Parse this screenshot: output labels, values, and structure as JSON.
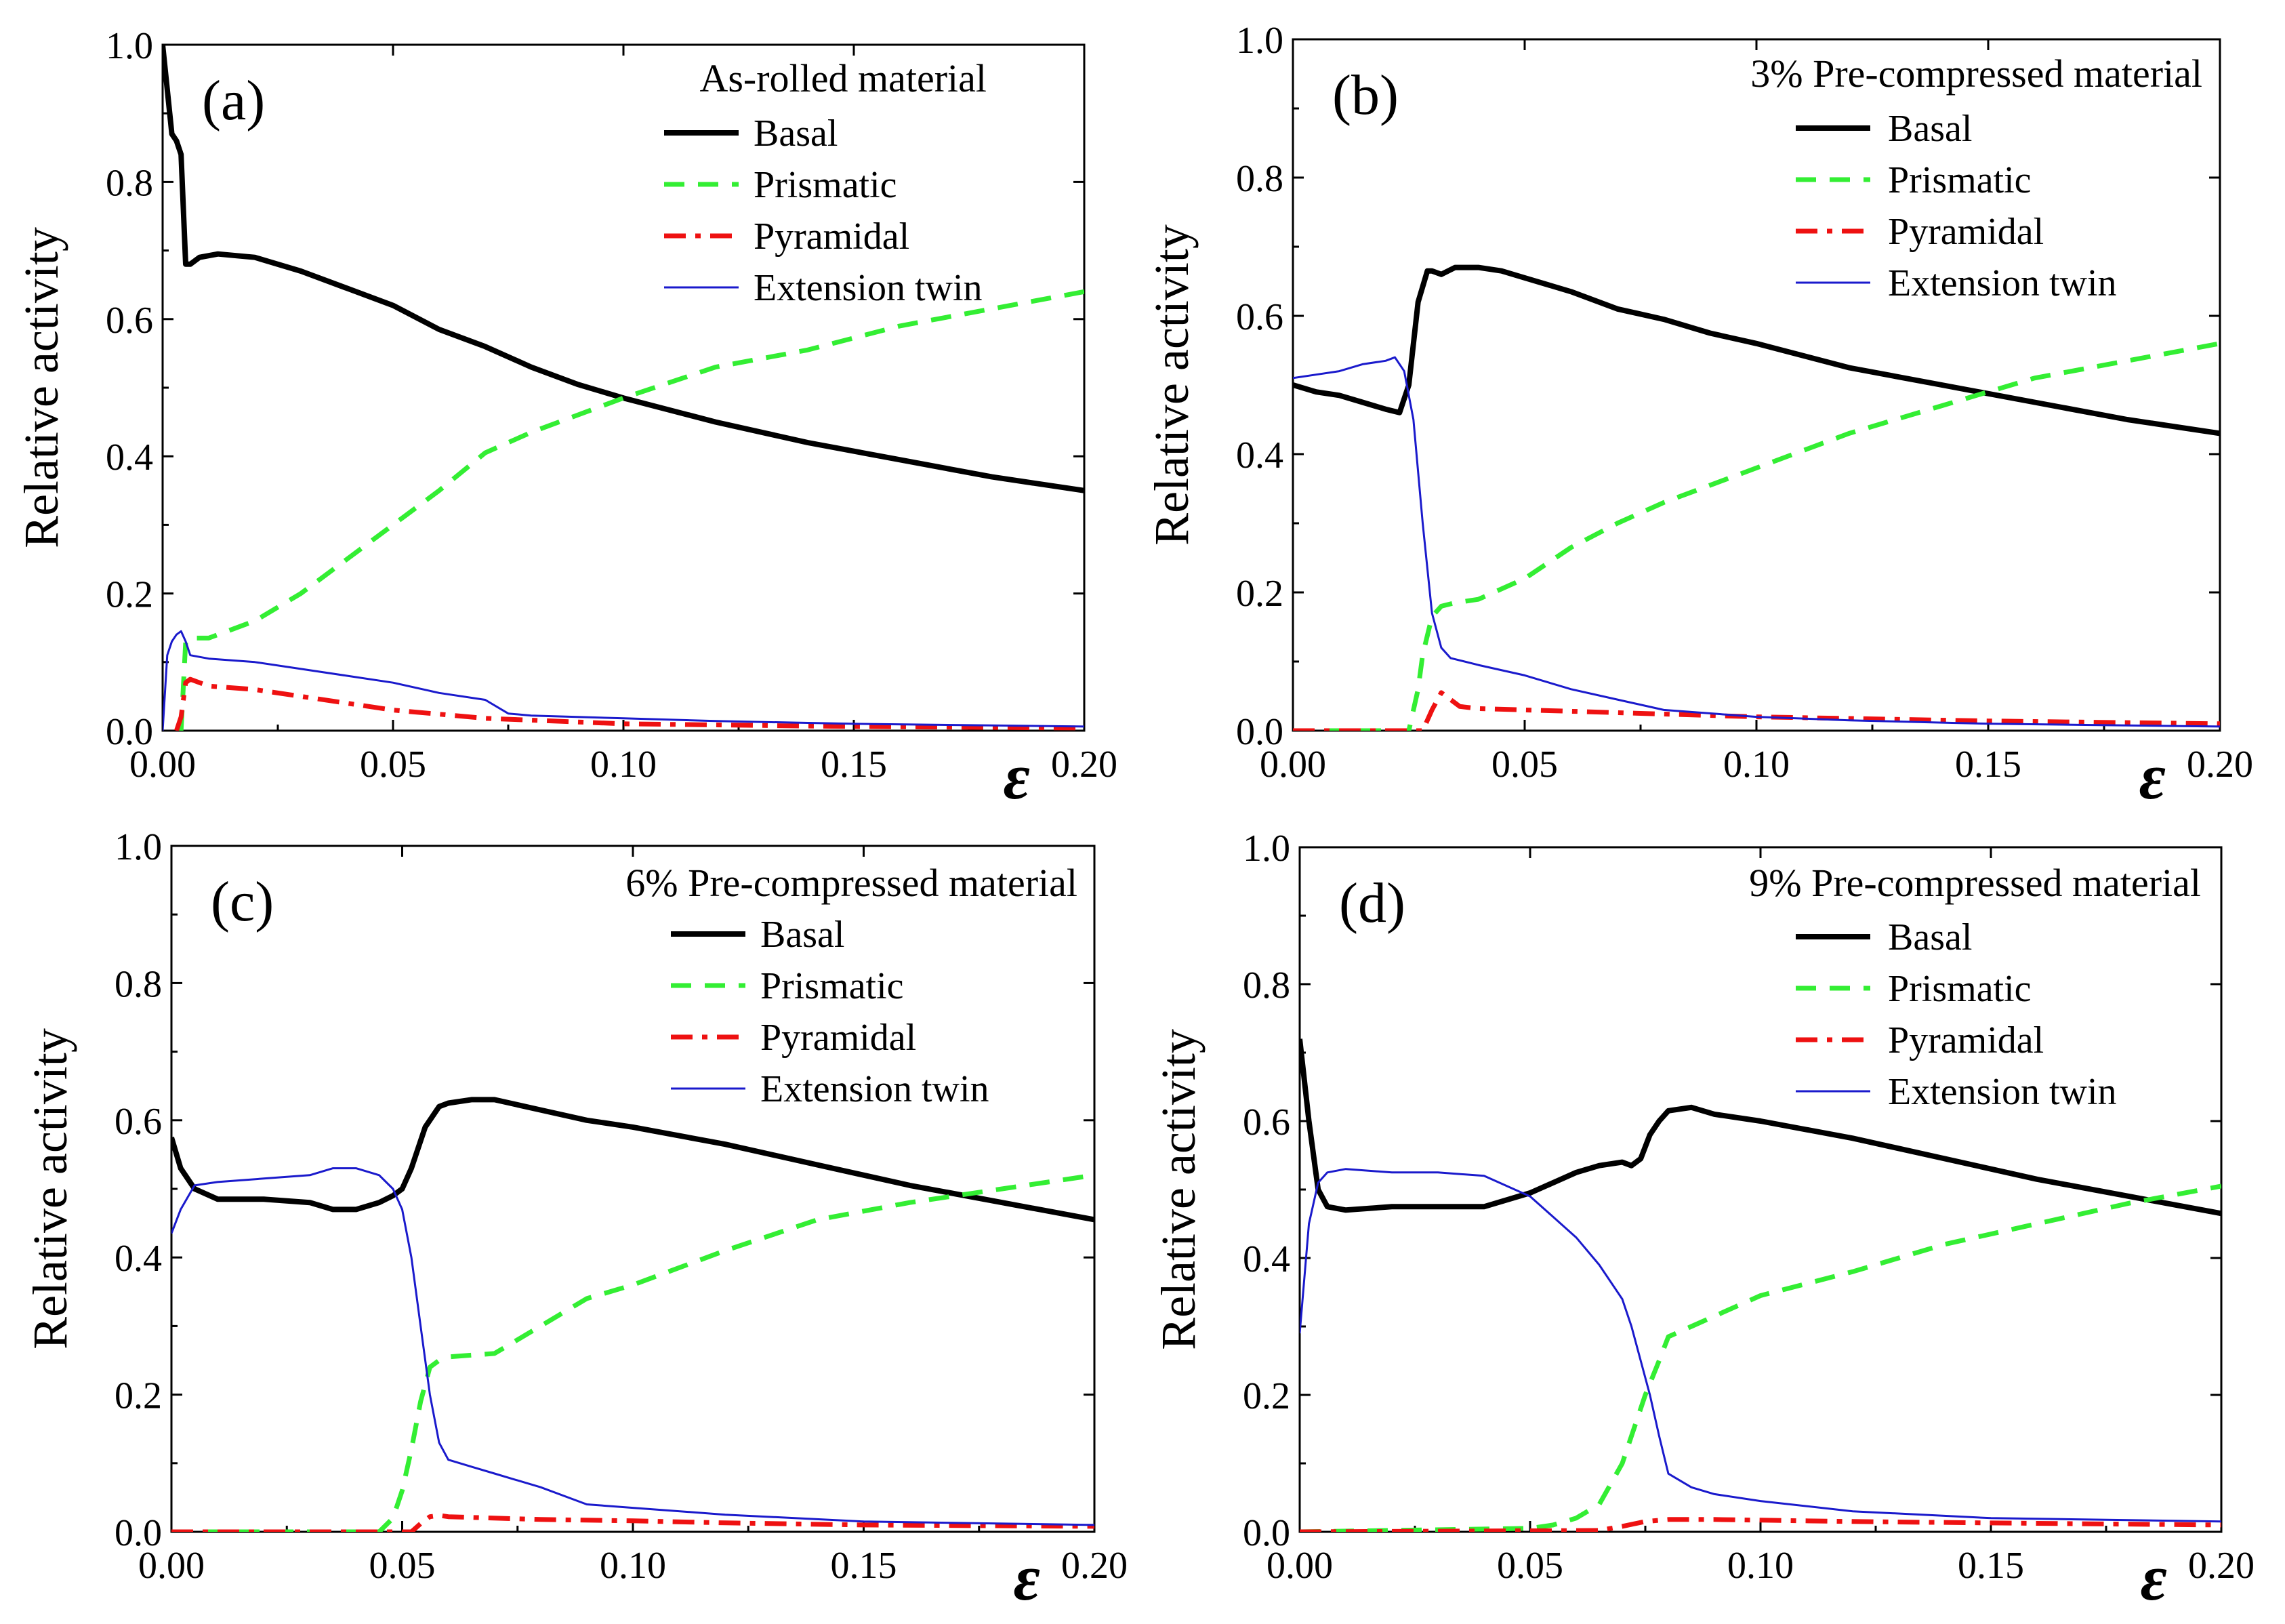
{
  "chart_data": [
    {
      "type": "line",
      "panel": "(a)",
      "title": "As-rolled material",
      "xlabel": "ε",
      "ylabel": "Relative activity",
      "xlim": [
        0,
        0.2
      ],
      "ylim": [
        0,
        1.0
      ],
      "xticks": [
        "0.00",
        "0.05",
        "0.10",
        "0.15",
        "0.20"
      ],
      "yticks": [
        "0.0",
        "0.2",
        "0.4",
        "0.6",
        "0.8",
        "1.0"
      ],
      "legend_position": "top-right",
      "series": [
        {
          "name": "Basal",
          "color": "#000000",
          "style": "solid-thick",
          "x": [
            0,
            0.002,
            0.003,
            0.004,
            0.005,
            0.006,
            0.008,
            0.012,
            0.02,
            0.03,
            0.04,
            0.05,
            0.06,
            0.07,
            0.08,
            0.09,
            0.1,
            0.12,
            0.14,
            0.16,
            0.18,
            0.2
          ],
          "y": [
            1.0,
            0.87,
            0.86,
            0.84,
            0.68,
            0.68,
            0.69,
            0.695,
            0.69,
            0.67,
            0.645,
            0.62,
            0.585,
            0.56,
            0.53,
            0.505,
            0.485,
            0.45,
            0.42,
            0.395,
            0.37,
            0.35
          ]
        },
        {
          "name": "Prismatic",
          "color": "#33ee33",
          "style": "dashed",
          "x": [
            0.004,
            0.005,
            0.006,
            0.01,
            0.02,
            0.03,
            0.04,
            0.05,
            0.06,
            0.07,
            0.08,
            0.09,
            0.1,
            0.12,
            0.14,
            0.16,
            0.18,
            0.2
          ],
          "y": [
            0.0,
            0.13,
            0.135,
            0.135,
            0.16,
            0.2,
            0.25,
            0.3,
            0.35,
            0.405,
            0.435,
            0.46,
            0.485,
            0.53,
            0.555,
            0.59,
            0.615,
            0.64
          ]
        },
        {
          "name": "Pyramidal",
          "color": "#ee1111",
          "style": "dash-dot",
          "x": [
            0.003,
            0.004,
            0.005,
            0.006,
            0.01,
            0.02,
            0.03,
            0.05,
            0.07,
            0.1,
            0.15,
            0.2
          ],
          "y": [
            0.0,
            0.02,
            0.07,
            0.075,
            0.065,
            0.06,
            0.05,
            0.03,
            0.018,
            0.01,
            0.006,
            0.004
          ]
        },
        {
          "name": "Extension twin",
          "color": "#1a1acc",
          "style": "solid-thin",
          "x": [
            0,
            0.001,
            0.002,
            0.003,
            0.004,
            0.005,
            0.006,
            0.01,
            0.02,
            0.03,
            0.04,
            0.05,
            0.06,
            0.07,
            0.075,
            0.08,
            0.1,
            0.12,
            0.15,
            0.2
          ],
          "y": [
            0.0,
            0.11,
            0.13,
            0.14,
            0.145,
            0.13,
            0.11,
            0.105,
            0.1,
            0.09,
            0.08,
            0.07,
            0.055,
            0.045,
            0.025,
            0.022,
            0.018,
            0.014,
            0.01,
            0.006
          ]
        }
      ]
    },
    {
      "type": "line",
      "panel": "(b)",
      "title": "3% Pre-compressed material",
      "xlabel": "ε",
      "ylabel": "Relative activity",
      "xlim": [
        0,
        0.2
      ],
      "ylim": [
        0,
        1.0
      ],
      "xticks": [
        "0.00",
        "0.05",
        "0.10",
        "0.15",
        "0.20"
      ],
      "yticks": [
        "0.0",
        "0.2",
        "0.4",
        "0.6",
        "0.8",
        "1.0"
      ],
      "legend_position": "top-right",
      "series": [
        {
          "name": "Basal",
          "color": "#000000",
          "style": "solid-thick",
          "x": [
            0,
            0.005,
            0.01,
            0.015,
            0.02,
            0.023,
            0.025,
            0.027,
            0.029,
            0.03,
            0.032,
            0.035,
            0.04,
            0.045,
            0.05,
            0.06,
            0.07,
            0.08,
            0.09,
            0.1,
            0.12,
            0.14,
            0.16,
            0.18,
            0.2
          ],
          "y": [
            0.5,
            0.49,
            0.485,
            0.475,
            0.465,
            0.46,
            0.5,
            0.62,
            0.665,
            0.665,
            0.66,
            0.67,
            0.67,
            0.665,
            0.655,
            0.635,
            0.61,
            0.595,
            0.575,
            0.56,
            0.525,
            0.5,
            0.475,
            0.45,
            0.43
          ]
        },
        {
          "name": "Prismatic",
          "color": "#33ee33",
          "style": "dashed",
          "x": [
            0,
            0.025,
            0.027,
            0.028,
            0.03,
            0.032,
            0.035,
            0.04,
            0.05,
            0.06,
            0.07,
            0.08,
            0.1,
            0.12,
            0.14,
            0.16,
            0.18,
            0.2
          ],
          "y": [
            0.0,
            0.0,
            0.06,
            0.11,
            0.165,
            0.18,
            0.185,
            0.19,
            0.22,
            0.265,
            0.3,
            0.33,
            0.38,
            0.43,
            0.47,
            0.51,
            0.535,
            0.56
          ]
        },
        {
          "name": "Pyramidal",
          "color": "#ee1111",
          "style": "dash-dot",
          "x": [
            0,
            0.028,
            0.03,
            0.032,
            0.034,
            0.036,
            0.04,
            0.06,
            0.08,
            0.1,
            0.15,
            0.2
          ],
          "y": [
            0.0,
            0.0,
            0.03,
            0.055,
            0.045,
            0.035,
            0.032,
            0.028,
            0.024,
            0.02,
            0.014,
            0.01
          ]
        },
        {
          "name": "Extension twin",
          "color": "#1a1acc",
          "style": "solid-thin",
          "x": [
            0,
            0.005,
            0.01,
            0.015,
            0.02,
            0.022,
            0.024,
            0.026,
            0.028,
            0.03,
            0.032,
            0.034,
            0.04,
            0.05,
            0.06,
            0.07,
            0.08,
            0.1,
            0.12,
            0.15,
            0.2
          ],
          "y": [
            0.51,
            0.515,
            0.52,
            0.53,
            0.535,
            0.54,
            0.52,
            0.45,
            0.3,
            0.17,
            0.12,
            0.105,
            0.095,
            0.08,
            0.06,
            0.045,
            0.03,
            0.02,
            0.015,
            0.01,
            0.006
          ]
        }
      ]
    },
    {
      "type": "line",
      "panel": "(c)",
      "title": "6% Pre-compressed material",
      "xlabel": "ε",
      "ylabel": "Relative activity",
      "xlim": [
        0,
        0.2
      ],
      "ylim": [
        0,
        1.0
      ],
      "xticks": [
        "0.00",
        "0.05",
        "0.10",
        "0.15",
        "0.20"
      ],
      "yticks": [
        "0.0",
        "0.2",
        "0.4",
        "0.6",
        "0.8",
        "1.0"
      ],
      "legend_position": "top-right",
      "series": [
        {
          "name": "Basal",
          "color": "#000000",
          "style": "solid-thick",
          "x": [
            0,
            0.002,
            0.005,
            0.01,
            0.02,
            0.03,
            0.035,
            0.04,
            0.045,
            0.048,
            0.05,
            0.052,
            0.055,
            0.058,
            0.06,
            0.065,
            0.07,
            0.08,
            0.09,
            0.1,
            0.12,
            0.14,
            0.16,
            0.18,
            0.2
          ],
          "y": [
            0.575,
            0.53,
            0.5,
            0.485,
            0.485,
            0.48,
            0.47,
            0.47,
            0.48,
            0.49,
            0.5,
            0.53,
            0.59,
            0.62,
            0.625,
            0.63,
            0.63,
            0.615,
            0.6,
            0.59,
            0.565,
            0.535,
            0.505,
            0.48,
            0.455
          ]
        },
        {
          "name": "Prismatic",
          "color": "#33ee33",
          "style": "dashed",
          "x": [
            0,
            0.045,
            0.048,
            0.05,
            0.052,
            0.054,
            0.056,
            0.058,
            0.06,
            0.07,
            0.08,
            0.09,
            0.1,
            0.12,
            0.14,
            0.16,
            0.18,
            0.2
          ],
          "y": [
            0.0,
            0.0,
            0.02,
            0.06,
            0.12,
            0.19,
            0.24,
            0.25,
            0.255,
            0.26,
            0.3,
            0.34,
            0.36,
            0.41,
            0.455,
            0.48,
            0.5,
            0.52
          ]
        },
        {
          "name": "Pyramidal",
          "color": "#ee1111",
          "style": "dash-dot",
          "x": [
            0,
            0.052,
            0.054,
            0.056,
            0.058,
            0.06,
            0.08,
            0.1,
            0.12,
            0.15,
            0.2
          ],
          "y": [
            0.0,
            0.0,
            0.012,
            0.022,
            0.024,
            0.022,
            0.018,
            0.016,
            0.013,
            0.01,
            0.008
          ]
        },
        {
          "name": "Extension twin",
          "color": "#1a1acc",
          "style": "solid-thin",
          "x": [
            0,
            0.002,
            0.005,
            0.01,
            0.02,
            0.03,
            0.035,
            0.04,
            0.045,
            0.048,
            0.05,
            0.052,
            0.054,
            0.056,
            0.058,
            0.06,
            0.065,
            0.07,
            0.08,
            0.09,
            0.1,
            0.12,
            0.15,
            0.2
          ],
          "y": [
            0.435,
            0.47,
            0.505,
            0.51,
            0.515,
            0.52,
            0.53,
            0.53,
            0.52,
            0.5,
            0.47,
            0.4,
            0.3,
            0.2,
            0.13,
            0.105,
            0.095,
            0.085,
            0.065,
            0.04,
            0.035,
            0.025,
            0.015,
            0.01
          ]
        }
      ]
    },
    {
      "type": "line",
      "panel": "(d)",
      "title": "9% Pre-compressed material",
      "xlabel": "ε",
      "ylabel": "Relative activity",
      "xlim": [
        0,
        0.2
      ],
      "ylim": [
        0,
        1.0
      ],
      "xticks": [
        "0.00",
        "0.05",
        "0.10",
        "0.15",
        "0.20"
      ],
      "yticks": [
        "0.0",
        "0.2",
        "0.4",
        "0.6",
        "0.8",
        "1.0"
      ],
      "legend_position": "top-right",
      "series": [
        {
          "name": "Basal",
          "color": "#000000",
          "style": "solid-thick",
          "x": [
            0,
            0.002,
            0.004,
            0.006,
            0.01,
            0.02,
            0.03,
            0.04,
            0.05,
            0.06,
            0.065,
            0.07,
            0.072,
            0.074,
            0.076,
            0.078,
            0.08,
            0.085,
            0.09,
            0.1,
            0.12,
            0.14,
            0.16,
            0.18,
            0.2
          ],
          "y": [
            0.72,
            0.6,
            0.5,
            0.475,
            0.47,
            0.475,
            0.475,
            0.475,
            0.495,
            0.525,
            0.535,
            0.54,
            0.535,
            0.545,
            0.58,
            0.6,
            0.615,
            0.62,
            0.61,
            0.6,
            0.575,
            0.545,
            0.515,
            0.49,
            0.465
          ]
        },
        {
          "name": "Prismatic",
          "color": "#33ee33",
          "style": "dashed",
          "x": [
            0,
            0.05,
            0.055,
            0.06,
            0.065,
            0.07,
            0.075,
            0.078,
            0.08,
            0.085,
            0.09,
            0.1,
            0.12,
            0.14,
            0.16,
            0.18,
            0.2
          ],
          "y": [
            0.0,
            0.005,
            0.01,
            0.02,
            0.04,
            0.1,
            0.2,
            0.25,
            0.285,
            0.3,
            0.315,
            0.345,
            0.38,
            0.42,
            0.45,
            0.48,
            0.505
          ]
        },
        {
          "name": "Pyramidal",
          "color": "#ee1111",
          "style": "dash-dot",
          "x": [
            0,
            0.065,
            0.07,
            0.075,
            0.08,
            0.09,
            0.1,
            0.12,
            0.15,
            0.2
          ],
          "y": [
            0.0,
            0.002,
            0.008,
            0.015,
            0.018,
            0.018,
            0.017,
            0.015,
            0.013,
            0.01
          ]
        },
        {
          "name": "Extension twin",
          "color": "#1a1acc",
          "style": "solid-thin",
          "x": [
            0,
            0.002,
            0.004,
            0.006,
            0.01,
            0.02,
            0.03,
            0.04,
            0.05,
            0.06,
            0.065,
            0.07,
            0.072,
            0.074,
            0.076,
            0.078,
            0.08,
            0.085,
            0.09,
            0.1,
            0.12,
            0.15,
            0.2
          ],
          "y": [
            0.29,
            0.45,
            0.51,
            0.525,
            0.53,
            0.525,
            0.525,
            0.52,
            0.49,
            0.43,
            0.39,
            0.34,
            0.3,
            0.25,
            0.2,
            0.14,
            0.085,
            0.065,
            0.055,
            0.045,
            0.03,
            0.02,
            0.015
          ]
        }
      ]
    }
  ]
}
